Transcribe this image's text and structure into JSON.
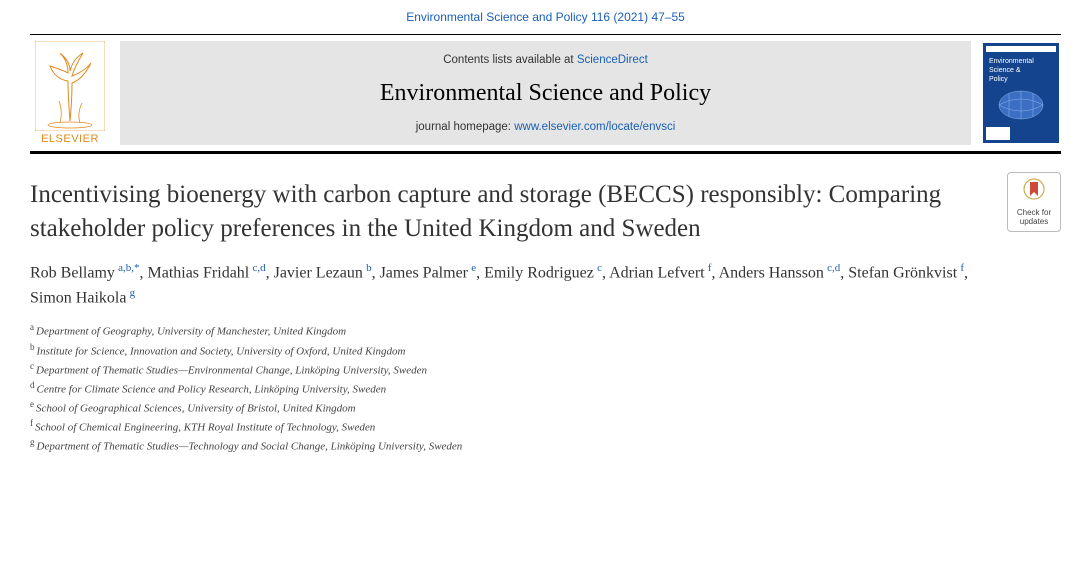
{
  "citation": "Environmental Science and Policy 116 (2021) 47–55",
  "header": {
    "contents_prefix": "Contents lists available at ",
    "contents_link": "ScienceDirect",
    "journal_name": "Environmental Science and Policy",
    "homepage_prefix": "journal homepage: ",
    "homepage_link": "www.elsevier.com/locate/envsci",
    "elsevier_label": "ELSEVIER",
    "cover_title_1": "Environmental",
    "cover_title_2": "Science &",
    "cover_title_3": "Policy"
  },
  "updates_badge": "Check for updates",
  "title": "Incentivising bioenergy with carbon capture and storage (BECCS) responsibly: Comparing stakeholder policy preferences in the United Kingdom and Sweden",
  "authors": [
    {
      "name": "Rob Bellamy",
      "aff": "a,b,",
      "star": "*"
    },
    {
      "name": "Mathias Fridahl",
      "aff": "c,d"
    },
    {
      "name": "Javier Lezaun",
      "aff": "b"
    },
    {
      "name": "James Palmer",
      "aff": "e"
    },
    {
      "name": "Emily Rodriguez",
      "aff": "c"
    },
    {
      "name": "Adrian Lefvert",
      "aff": "f"
    },
    {
      "name": "Anders Hansson",
      "aff": "c,d"
    },
    {
      "name": "Stefan Grönkvist",
      "aff": "f"
    },
    {
      "name": "Simon Haikola",
      "aff": "g"
    }
  ],
  "affiliations": [
    {
      "key": "a",
      "text": "Department of Geography, University of Manchester, United Kingdom"
    },
    {
      "key": "b",
      "text": "Institute for Science, Innovation and Society, University of Oxford, United Kingdom"
    },
    {
      "key": "c",
      "text": "Department of Thematic Studies—Environmental Change, Linköping University, Sweden"
    },
    {
      "key": "d",
      "text": "Centre for Climate Science and Policy Research, Linköping University, Sweden"
    },
    {
      "key": "e",
      "text": "School of Geographical Sciences, University of Bristol, United Kingdom"
    },
    {
      "key": "f",
      "text": "School of Chemical Engineering, KTH Royal Institute of Technology, Sweden"
    },
    {
      "key": "g",
      "text": "Department of Thematic Studies—Technology and Social Change, Linköping University, Sweden"
    }
  ],
  "colors": {
    "link": "#1a5fb4",
    "elsevier_orange": "#e18a1b",
    "header_bg": "#e5e5e5",
    "cover_bg": "#14448d"
  }
}
